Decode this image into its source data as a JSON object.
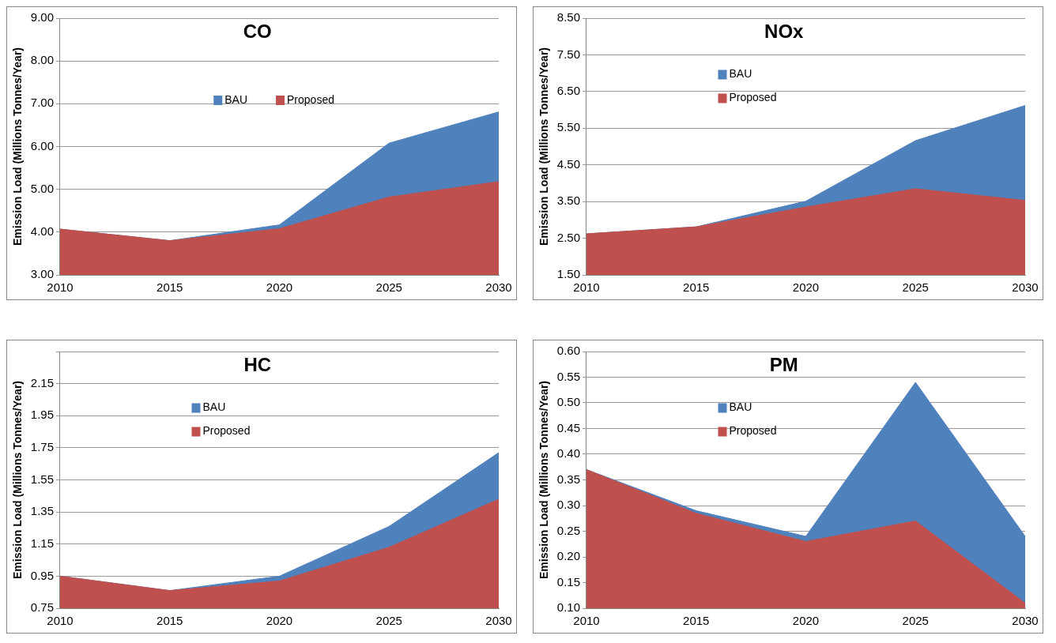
{
  "chart_data": [
    {
      "type": "area",
      "title": "CO",
      "ylabel": "Emission Load (Millions Tonnes/Year)",
      "x": [
        2010,
        2015,
        2020,
        2025,
        2030
      ],
      "xlim": [
        2010,
        2030
      ],
      "xticks": [
        2010,
        2015,
        2020,
        2025,
        2030
      ],
      "ylim": [
        3,
        9
      ],
      "yticks": [
        {
          "value": 3,
          "label": "3.00"
        },
        {
          "value": 4,
          "label": "4.00"
        },
        {
          "value": 5,
          "label": "5.00"
        },
        {
          "value": 6,
          "label": "6.00"
        },
        {
          "value": 7,
          "label": "7.00"
        },
        {
          "value": 8,
          "label": "8.00"
        },
        {
          "value": 9,
          "label": "9.00"
        }
      ],
      "grid": "y",
      "legend": "top",
      "series": [
        {
          "name": "BAU",
          "color": "#4f81bd",
          "values": [
            4.07,
            3.8,
            4.17,
            6.08,
            6.81
          ]
        },
        {
          "name": "Proposed",
          "color": "#c0504d",
          "values": [
            4.07,
            3.8,
            4.08,
            4.82,
            5.18
          ]
        }
      ]
    },
    {
      "type": "area",
      "title": "NOx",
      "ylabel": "Emission Load (Millions Tonnes/Year)",
      "x": [
        2010,
        2015,
        2020,
        2025,
        2030
      ],
      "xlim": [
        2010,
        2030
      ],
      "xticks": [
        2010,
        2015,
        2020,
        2025,
        2030
      ],
      "ylim": [
        1.5,
        8.5
      ],
      "yticks": [
        {
          "value": 1.5,
          "label": "1.50"
        },
        {
          "value": 2.5,
          "label": "2.50"
        },
        {
          "value": 3.5,
          "label": "3.50"
        },
        {
          "value": 4.5,
          "label": "4.50"
        },
        {
          "value": 5.5,
          "label": "5.50"
        },
        {
          "value": 6.5,
          "label": "6.50"
        },
        {
          "value": 7.5,
          "label": "7.50"
        },
        {
          "value": 8.5,
          "label": "8.50"
        }
      ],
      "grid": "y",
      "legend": "top left",
      "series": [
        {
          "name": "BAU",
          "color": "#4f81bd",
          "values": [
            2.62,
            2.81,
            3.51,
            5.16,
            6.12
          ]
        },
        {
          "name": "Proposed",
          "color": "#c0504d",
          "values": [
            2.62,
            2.81,
            3.35,
            3.85,
            3.53
          ]
        }
      ]
    },
    {
      "type": "area",
      "title": "HC",
      "ylabel": "Emission Load (Millions Tonnes/Year)",
      "x": [
        2010,
        2015,
        2020,
        2025,
        2030
      ],
      "xlim": [
        2010,
        2030
      ],
      "xticks": [
        2010,
        2015,
        2020,
        2025,
        2030
      ],
      "ylim": [
        0.75,
        2.35
      ],
      "yticks": [
        0.75,
        0.95,
        1.15,
        1.35,
        1.55,
        1.75,
        1.95,
        2.15,
        {
          "value": 2.35,
          "label": null
        }
      ],
      "grid": "y",
      "legend": "top left",
      "series": [
        {
          "name": "BAU",
          "color": "#4f81bd",
          "values": [
            0.95,
            0.86,
            0.95,
            1.26,
            1.72
          ]
        },
        {
          "name": "Proposed",
          "color": "#c0504d",
          "values": [
            0.95,
            0.86,
            0.92,
            1.13,
            1.43
          ]
        }
      ]
    },
    {
      "type": "area",
      "title": "PM",
      "ylabel": "Emission Load (Millions Tonnes/Year)",
      "x": [
        2010,
        2015,
        2020,
        2025,
        2030
      ],
      "xlim": [
        2010,
        2030
      ],
      "xticks": [
        2010,
        2015,
        2020,
        2025,
        2030
      ],
      "ylim": [
        0.1,
        0.6
      ],
      "yticks": [
        {
          "value": 0.1,
          "label": "0.10"
        },
        0.15,
        {
          "value": 0.2,
          "label": "0.20"
        },
        0.25,
        {
          "value": 0.3,
          "label": "0.30"
        },
        0.35,
        {
          "value": 0.4,
          "label": "0.40"
        },
        0.45,
        {
          "value": 0.5,
          "label": "0.50"
        },
        0.55,
        {
          "value": 0.6,
          "label": "0.60"
        }
      ],
      "grid": "y",
      "legend": "top left",
      "series": [
        {
          "name": "BAU",
          "color": "#4f81bd",
          "values": [
            0.37,
            0.29,
            0.24,
            0.54,
            0.24
          ]
        },
        {
          "name": "Proposed",
          "color": "#c0504d",
          "values": [
            0.37,
            0.285,
            0.23,
            0.27,
            0.11
          ]
        }
      ]
    }
  ]
}
